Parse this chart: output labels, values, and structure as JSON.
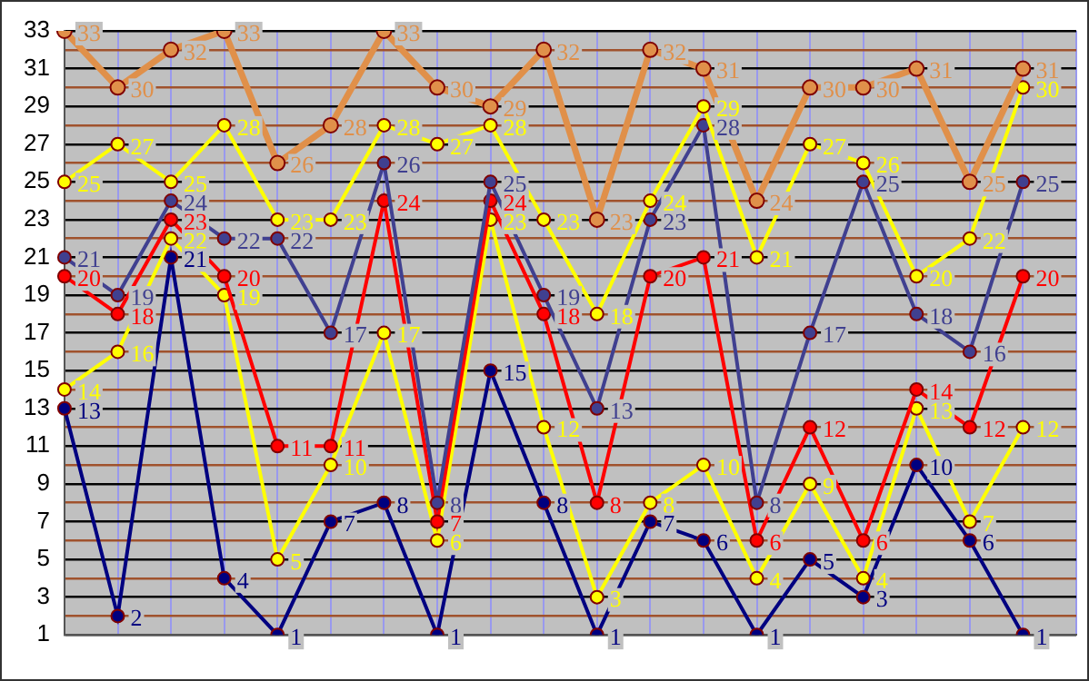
{
  "chart_data": {
    "type": "line",
    "categories": [
      null,
      null,
      null,
      null,
      null,
      null,
      null,
      null,
      null,
      null,
      null,
      null,
      null,
      null,
      null,
      null,
      null,
      null,
      null,
      null
    ],
    "series": [
      {
        "color": "#e0904a",
        "values": [
          33,
          30,
          32,
          33,
          26,
          28,
          33,
          30,
          29,
          32,
          23,
          32,
          31,
          24,
          30,
          30,
          31,
          25,
          31,
          null
        ]
      },
      {
        "color": "#ffff00",
        "values": [
          25,
          27,
          25,
          28,
          23,
          23,
          28,
          27,
          28,
          23,
          18,
          24,
          29,
          21,
          27,
          26,
          20,
          22,
          30,
          null
        ]
      },
      {
        "color": "#404090",
        "values": [
          21,
          19,
          24,
          22,
          22,
          17,
          26,
          8,
          25,
          19,
          13,
          23,
          28,
          8,
          17,
          25,
          18,
          16,
          25,
          null
        ]
      },
      {
        "color": "#ff0000",
        "values": [
          20,
          18,
          23,
          20,
          11,
          11,
          24,
          7,
          24,
          18,
          8,
          20,
          21,
          6,
          12,
          6,
          14,
          12,
          20,
          null
        ]
      },
      {
        "color": "#ffff00",
        "values": [
          14,
          16,
          22,
          19,
          5,
          10,
          17,
          6,
          23,
          12,
          3,
          8,
          10,
          4,
          9,
          4,
          13,
          7,
          12,
          null
        ]
      },
      {
        "color": "#000080",
        "values": [
          13,
          2,
          21,
          4,
          1,
          7,
          8,
          1,
          15,
          8,
          1,
          7,
          6,
          1,
          5,
          3,
          10,
          6,
          1,
          null
        ]
      }
    ],
    "ylim": [
      1,
      33
    ],
    "yticks": [
      1,
      {
        "value": 2,
        "label": null
      },
      3,
      {
        "value": 4,
        "label": null
      },
      5,
      {
        "value": 6,
        "label": null
      },
      7,
      {
        "value": 8,
        "label": null
      },
      9,
      {
        "value": 10,
        "label": null
      },
      11,
      {
        "value": 12,
        "label": null
      },
      13,
      {
        "value": 14,
        "label": null
      },
      15,
      {
        "value": 16,
        "label": null
      },
      17,
      {
        "value": 18,
        "label": null
      },
      19,
      {
        "value": 20,
        "label": null
      },
      21,
      {
        "value": 22,
        "label": null
      },
      23,
      {
        "value": 24,
        "label": null
      },
      25,
      {
        "value": 26,
        "label": null
      },
      27,
      {
        "value": 28,
        "label": null
      },
      29,
      {
        "value": 30,
        "label": null
      },
      31,
      {
        "value": 32,
        "label": null
      },
      33
    ],
    "grid": true,
    "legend": false,
    "marker": "circle",
    "line_style": "solid",
    "data_labels": true
  }
}
